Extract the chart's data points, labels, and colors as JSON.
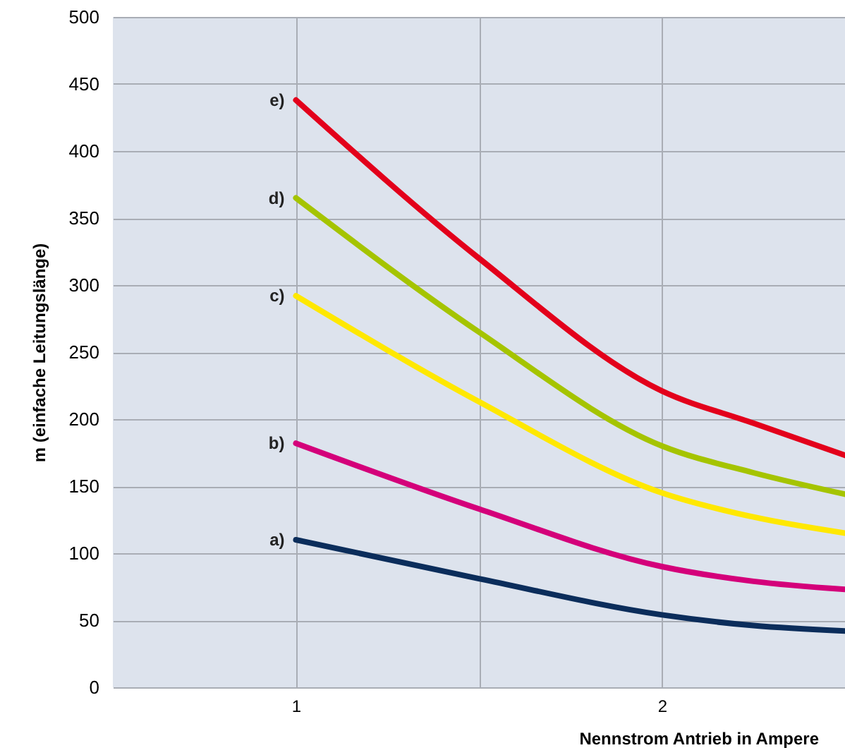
{
  "chart_data": {
    "type": "line",
    "xlabel": "Nennstrom Antrieb in Ampere",
    "ylabel": "m (einfache Leitungslänge)",
    "x": [
      1,
      1.5,
      2,
      2.25,
      2.5
    ],
    "series": [
      {
        "name": "a)",
        "color": "#0b2d5b",
        "values": [
          110,
          81,
          54,
          46,
          42
        ]
      },
      {
        "name": "b)",
        "color": "#d4007a",
        "values": [
          182,
          133,
          90,
          79,
          73
        ]
      },
      {
        "name": "c)",
        "color": "#ffe800",
        "values": [
          292,
          213,
          145,
          127,
          115
        ]
      },
      {
        "name": "d)",
        "color": "#a5c400",
        "values": [
          365,
          265,
          180,
          160,
          144
        ]
      },
      {
        "name": "e)",
        "color": "#e3001b",
        "values": [
          438,
          320,
          221,
          197,
          173
        ]
      }
    ],
    "xlim": [
      0.5,
      2.5
    ],
    "xticks": [
      1,
      {
        "value": 1.5,
        "label": null
      },
      2
    ],
    "ylim": [
      0,
      500
    ],
    "yticks": [
      0,
      50,
      100,
      150,
      200,
      250,
      300,
      350,
      400,
      450,
      500
    ],
    "grid": true,
    "line_style": "solid"
  }
}
